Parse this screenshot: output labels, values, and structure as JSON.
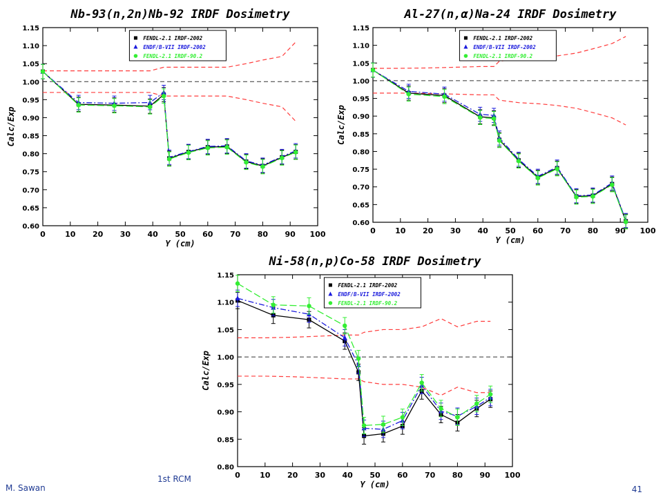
{
  "footer": {
    "author": "M. Sawan",
    "meeting": "1st RCM",
    "page": "41"
  },
  "chart_data": [
    {
      "type": "line",
      "title": "Nb-93(n,2n)Nb-92 IRDF Dosimetry",
      "xlabel": "Y (cm)",
      "ylabel": "Calc/Exp",
      "xlim": [
        0,
        100
      ],
      "ylim": [
        0.6,
        1.15
      ],
      "xticks": [
        0,
        10,
        20,
        30,
        40,
        50,
        60,
        70,
        80,
        90,
        100
      ],
      "yticks": [
        0.6,
        0.65,
        0.7,
        0.75,
        0.8,
        0.85,
        0.9,
        0.95,
        1.0,
        1.05,
        1.1,
        1.15
      ],
      "ref_line": 1.0,
      "legend_position": "top-right",
      "error": 0.02,
      "x": [
        0,
        13,
        26,
        39,
        44,
        46,
        53,
        60,
        67,
        74,
        80,
        87,
        92
      ],
      "series": [
        {
          "name": "FENDL-2.1 IRDF-2002",
          "color": "#000000",
          "marker": "square",
          "dash": "",
          "values": [
            1.028,
            0.937,
            0.935,
            0.932,
            0.964,
            0.787,
            0.805,
            0.818,
            0.82,
            0.778,
            0.766,
            0.79,
            0.805
          ]
        },
        {
          "name": "ENDF/B-VII IRDF-2002",
          "color": "#1a1adc",
          "marker": "triangle",
          "dash": "8,3,2,3",
          "values": [
            1.028,
            0.942,
            0.94,
            0.942,
            0.97,
            0.79,
            0.806,
            0.82,
            0.822,
            0.78,
            0.768,
            0.792,
            0.808
          ]
        },
        {
          "name": "FENDL-2.1 IRDF-90.2",
          "color": "#33ee33",
          "marker": "circle",
          "dash": "10,4",
          "values": [
            1.028,
            0.935,
            0.933,
            0.93,
            0.96,
            0.785,
            0.803,
            0.816,
            0.818,
            0.776,
            0.764,
            0.788,
            0.804
          ]
        }
      ],
      "bounds": {
        "x": [
          0,
          10,
          20,
          30,
          39,
          44,
          50,
          60,
          67,
          74,
          80,
          87,
          92
        ],
        "upper": [
          1.03,
          1.03,
          1.03,
          1.03,
          1.03,
          1.04,
          1.04,
          1.04,
          1.04,
          1.05,
          1.06,
          1.07,
          1.11
        ],
        "lower": [
          0.97,
          0.97,
          0.97,
          0.97,
          0.97,
          0.96,
          0.96,
          0.96,
          0.96,
          0.95,
          0.94,
          0.93,
          0.89
        ]
      }
    },
    {
      "type": "line",
      "title": "Al-27(n,α)Na-24 IRDF Dosimetry",
      "xlabel": "Y (cm)",
      "ylabel": "Calc/Exp",
      "xlim": [
        0,
        100
      ],
      "ylim": [
        0.6,
        1.15
      ],
      "xticks": [
        0,
        10,
        20,
        30,
        40,
        50,
        60,
        70,
        80,
        90,
        100
      ],
      "yticks": [
        0.6,
        0.65,
        0.7,
        0.75,
        0.8,
        0.85,
        0.9,
        0.95,
        1.0,
        1.05,
        1.1,
        1.15
      ],
      "ref_line": 1.0,
      "legend_position": "top-right",
      "error": 0.02,
      "x": [
        0,
        13,
        26,
        39,
        44,
        46,
        53,
        60,
        67,
        74,
        80,
        87,
        92
      ],
      "series": [
        {
          "name": "FENDL-2.1 IRDF-2002",
          "color": "#000000",
          "marker": "square",
          "dash": "",
          "values": [
            1.03,
            0.965,
            0.958,
            0.898,
            0.895,
            0.833,
            0.775,
            0.727,
            0.753,
            0.673,
            0.675,
            0.708,
            0.603
          ]
        },
        {
          "name": "ENDF/B-VII IRDF-2002",
          "color": "#1a1adc",
          "marker": "triangle",
          "dash": "8,3,2,3",
          "values": [
            1.03,
            0.97,
            0.962,
            0.905,
            0.902,
            0.838,
            0.778,
            0.73,
            0.756,
            0.675,
            0.677,
            0.711,
            0.605
          ]
        },
        {
          "name": "FENDL-2.1 IRDF-90.2",
          "color": "#33ee33",
          "marker": "circle",
          "dash": "10,4",
          "values": [
            1.03,
            0.962,
            0.955,
            0.896,
            0.893,
            0.831,
            0.773,
            0.725,
            0.751,
            0.671,
            0.673,
            0.706,
            0.601
          ]
        }
      ],
      "bounds": {
        "x": [
          0,
          10,
          20,
          30,
          39,
          44,
          46,
          53,
          60,
          67,
          74,
          80,
          87,
          92
        ],
        "upper": [
          1.035,
          1.035,
          1.036,
          1.038,
          1.04,
          1.04,
          1.055,
          1.062,
          1.065,
          1.07,
          1.078,
          1.09,
          1.105,
          1.125
        ],
        "lower": [
          0.965,
          0.965,
          0.964,
          0.962,
          0.96,
          0.96,
          0.945,
          0.938,
          0.935,
          0.93,
          0.922,
          0.91,
          0.895,
          0.875
        ]
      }
    },
    {
      "type": "line",
      "title": "Ni-58(n,p)Co-58 IRDF Dosimetry",
      "xlabel": "Y (cm)",
      "ylabel": "Calc/Exp",
      "xlim": [
        0,
        100
      ],
      "ylim": [
        0.8,
        1.15
      ],
      "xticks": [
        0,
        10,
        20,
        30,
        40,
        50,
        60,
        70,
        80,
        90,
        100
      ],
      "yticks": [
        0.8,
        0.85,
        0.9,
        0.95,
        1.0,
        1.05,
        1.1,
        1.15
      ],
      "ref_line": 1.0,
      "legend_position": "top-right",
      "error": 0.015,
      "x": [
        0,
        13,
        26,
        39,
        44,
        46,
        53,
        60,
        67,
        74,
        80,
        87,
        92
      ],
      "series": [
        {
          "name": "FENDL-2.1 IRDF-2002",
          "color": "#000000",
          "marker": "square",
          "dash": "",
          "values": [
            1.103,
            1.076,
            1.068,
            1.029,
            0.972,
            0.856,
            0.86,
            0.874,
            0.938,
            0.895,
            0.88,
            0.906,
            0.923
          ]
        },
        {
          "name": "ENDF/B-VII IRDF-2002",
          "color": "#1a1adc",
          "marker": "triangle",
          "dash": "8,3,2,3",
          "values": [
            1.107,
            1.09,
            1.078,
            1.035,
            0.985,
            0.87,
            0.868,
            0.884,
            0.948,
            0.901,
            0.892,
            0.91,
            0.926
          ]
        },
        {
          "name": "FENDL-2.1 IRDF-90.2",
          "color": "#33ee33",
          "marker": "circle",
          "dash": "10,4",
          "values": [
            1.134,
            1.095,
            1.093,
            1.057,
            0.997,
            0.875,
            0.877,
            0.89,
            0.953,
            0.906,
            0.89,
            0.915,
            0.932
          ]
        }
      ],
      "bounds": {
        "x": [
          0,
          10,
          20,
          30,
          39,
          44,
          46,
          53,
          60,
          67,
          74,
          80,
          87,
          92
        ],
        "upper": [
          1.035,
          1.035,
          1.036,
          1.038,
          1.04,
          1.04,
          1.045,
          1.05,
          1.05,
          1.055,
          1.07,
          1.055,
          1.065,
          1.065
        ],
        "lower": [
          0.965,
          0.965,
          0.964,
          0.962,
          0.96,
          0.96,
          0.955,
          0.95,
          0.95,
          0.945,
          0.93,
          0.945,
          0.935,
          0.935
        ]
      }
    }
  ]
}
